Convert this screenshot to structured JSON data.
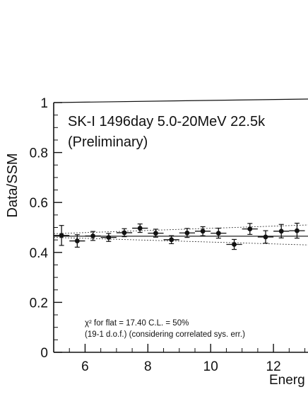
{
  "chart_data": {
    "type": "scatter",
    "title_line1": "SK-I  1496day  5.0-20MeV  22.5k",
    "title_line2": "(Preliminary)",
    "ylabel": "Data/SSM",
    "xlabel": "Energ",
    "xlim": [
      5.0,
      13.1
    ],
    "ylim": [
      0,
      1
    ],
    "x_ticks": [
      6,
      8,
      10,
      12
    ],
    "x_tick_labels": [
      "6",
      "8",
      "10",
      "12"
    ],
    "y_ticks": [
      0,
      0.2,
      0.4,
      0.6,
      0.8,
      1
    ],
    "y_tick_labels": [
      "0",
      "0.2",
      "0.4",
      "0.6",
      "0.8",
      "1"
    ],
    "flat_line": 0.465,
    "band": {
      "x": [
        5.0,
        13.1
      ],
      "upper": [
        0.475,
        0.51
      ],
      "lower": [
        0.46,
        0.43
      ]
    },
    "annotation_line1": "χ² for flat = 17.40  C.L. = 50%",
    "annotation_line2": "(19-1 d.o.f.) (considering correlated sys. err.)",
    "series": [
      {
        "x": [
          5.25,
          5.75,
          6.25,
          6.75,
          7.25,
          7.75,
          8.25,
          8.75,
          9.25,
          9.75,
          10.25,
          10.75,
          11.25,
          11.75,
          12.25,
          12.75
        ],
        "y": [
          0.468,
          0.446,
          0.466,
          0.46,
          0.479,
          0.497,
          0.477,
          0.451,
          0.478,
          0.485,
          0.477,
          0.432,
          0.494,
          0.462,
          0.485,
          0.487
        ],
        "x_err": [
          0.25,
          0.25,
          0.25,
          0.25,
          0.25,
          0.25,
          0.25,
          0.25,
          0.25,
          0.25,
          0.25,
          0.25,
          0.25,
          0.25,
          0.25,
          0.25
        ],
        "y_err": [
          0.04,
          0.025,
          0.018,
          0.016,
          0.016,
          0.017,
          0.016,
          0.016,
          0.018,
          0.018,
          0.02,
          0.02,
          0.022,
          0.025,
          0.027,
          0.03
        ]
      }
    ]
  }
}
